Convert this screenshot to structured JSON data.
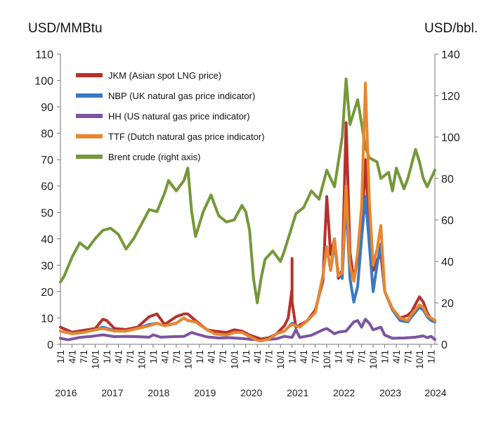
{
  "chart_data": {
    "type": "line",
    "left_axis_label": "USD/MMBtu",
    "right_axis_label": "USD/bbl.",
    "ylim_left": [
      0,
      110
    ],
    "ylim_right": [
      0,
      140
    ],
    "yticks_left": [
      "0",
      "10",
      "20",
      "30",
      "40",
      "50",
      "60",
      "70",
      "80",
      "90",
      "100",
      "110"
    ],
    "yticks_right": [
      "0",
      "20",
      "40",
      "60",
      "80",
      "100",
      "120",
      "140"
    ],
    "x_range": [
      "2016-01",
      "2024-02"
    ],
    "month_ticks": [
      "1/1",
      "4/1",
      "7/1",
      "10/1"
    ],
    "year_labels": [
      "2016",
      "2017",
      "2018",
      "2019",
      "2020",
      "2021",
      "2022",
      "2023",
      "2024"
    ],
    "grid": false,
    "legend_position": "top-left",
    "series": [
      {
        "name": "JKM (Asian spot LNG price)",
        "axis": "left",
        "color": "#B7312C",
        "points": [
          [
            "2016-01",
            6.5
          ],
          [
            "2016-04",
            4.6
          ],
          [
            "2016-07",
            5.3
          ],
          [
            "2016-10",
            6.0
          ],
          [
            "2016-12",
            9.5
          ],
          [
            "2017-01",
            9.0
          ],
          [
            "2017-03",
            6.0
          ],
          [
            "2017-06",
            5.6
          ],
          [
            "2017-09",
            6.5
          ],
          [
            "2017-12",
            10.5
          ],
          [
            "2018-02",
            11.5
          ],
          [
            "2018-04",
            7.5
          ],
          [
            "2018-07",
            10.5
          ],
          [
            "2018-09",
            11.5
          ],
          [
            "2018-10",
            11.5
          ],
          [
            "2018-12",
            9.0
          ],
          [
            "2019-03",
            5.5
          ],
          [
            "2019-05",
            5.0
          ],
          [
            "2019-08",
            4.5
          ],
          [
            "2019-10",
            5.5
          ],
          [
            "2019-12",
            5.0
          ],
          [
            "2020-02",
            3.5
          ],
          [
            "2020-04",
            2.5
          ],
          [
            "2020-05",
            2.0
          ],
          [
            "2020-07",
            2.5
          ],
          [
            "2020-09",
            4.0
          ],
          [
            "2020-11",
            7.0
          ],
          [
            "2020-12",
            10.0
          ],
          [
            "2021-01",
            21.0
          ],
          [
            "2021-01",
            32.5
          ],
          [
            "2021-01",
            16.0
          ],
          [
            "2021-02",
            6.5
          ],
          [
            "2021-05",
            9.0
          ],
          [
            "2021-07",
            13.0
          ],
          [
            "2021-09",
            24.0
          ],
          [
            "2021-10",
            56.0
          ],
          [
            "2021-11",
            34.0
          ],
          [
            "2021-12",
            40.0
          ],
          [
            "2022-01",
            25.0
          ],
          [
            "2022-02",
            28.0
          ],
          [
            "2022-03",
            84.0
          ],
          [
            "2022-04",
            35.0
          ],
          [
            "2022-05",
            24.0
          ],
          [
            "2022-06",
            33.0
          ],
          [
            "2022-07",
            42.0
          ],
          [
            "2022-08",
            70.0
          ],
          [
            "2022-09",
            42.0
          ],
          [
            "2022-10",
            28.0
          ],
          [
            "2022-11",
            32.0
          ],
          [
            "2022-12",
            34.0
          ],
          [
            "2023-01",
            20.0
          ],
          [
            "2023-03",
            13.5
          ],
          [
            "2023-05",
            10.0
          ],
          [
            "2023-07",
            11.0
          ],
          [
            "2023-08",
            12.5
          ],
          [
            "2023-10",
            18.0
          ],
          [
            "2023-11",
            16.0
          ],
          [
            "2023-12",
            12.0
          ],
          [
            "2024-01",
            9.5
          ],
          [
            "2024-02",
            9.0
          ]
        ]
      },
      {
        "name": "NBP (UK natural gas price indicator)",
        "axis": "left",
        "color": "#3A78C3",
        "points": [
          [
            "2016-01",
            5.0
          ],
          [
            "2016-04",
            4.2
          ],
          [
            "2016-07",
            4.6
          ],
          [
            "2016-10",
            5.5
          ],
          [
            "2016-12",
            6.5
          ],
          [
            "2017-03",
            5.2
          ],
          [
            "2017-06",
            5.0
          ],
          [
            "2017-09",
            6.0
          ],
          [
            "2017-12",
            7.5
          ],
          [
            "2018-02",
            8.0
          ],
          [
            "2018-04",
            7.0
          ],
          [
            "2018-07",
            8.0
          ],
          [
            "2018-09",
            10.0
          ],
          [
            "2018-10",
            9.0
          ],
          [
            "2018-12",
            8.5
          ],
          [
            "2019-03",
            5.5
          ],
          [
            "2019-05",
            4.0
          ],
          [
            "2019-08",
            3.5
          ],
          [
            "2019-10",
            4.5
          ],
          [
            "2019-12",
            4.5
          ],
          [
            "2020-02",
            3.0
          ],
          [
            "2020-04",
            1.5
          ],
          [
            "2020-05",
            1.3
          ],
          [
            "2020-07",
            2.0
          ],
          [
            "2020-09",
            4.0
          ],
          [
            "2020-11",
            5.0
          ],
          [
            "2020-12",
            6.5
          ],
          [
            "2021-01",
            8.0
          ],
          [
            "2021-03",
            6.5
          ],
          [
            "2021-05",
            9.0
          ],
          [
            "2021-07",
            12.0
          ],
          [
            "2021-09",
            26.0
          ],
          [
            "2021-10",
            37.0
          ],
          [
            "2021-11",
            28.0
          ],
          [
            "2021-12",
            38.0
          ],
          [
            "2022-01",
            27.0
          ],
          [
            "2022-02",
            25.0
          ],
          [
            "2022-03",
            55.0
          ],
          [
            "2022-04",
            25.0
          ],
          [
            "2022-05",
            16.0
          ],
          [
            "2022-06",
            22.0
          ],
          [
            "2022-07",
            40.0
          ],
          [
            "2022-08",
            56.0
          ],
          [
            "2022-09",
            38.0
          ],
          [
            "2022-10",
            20.0
          ],
          [
            "2022-11",
            30.0
          ],
          [
            "2022-12",
            38.0
          ],
          [
            "2023-01",
            20.0
          ],
          [
            "2023-03",
            13.0
          ],
          [
            "2023-05",
            9.0
          ],
          [
            "2023-07",
            8.5
          ],
          [
            "2023-08",
            10.5
          ],
          [
            "2023-10",
            14.0
          ],
          [
            "2023-11",
            13.0
          ],
          [
            "2023-12",
            10.5
          ],
          [
            "2024-01",
            9.0
          ],
          [
            "2024-02",
            8.5
          ]
        ]
      },
      {
        "name": "HH (US natural gas price indicator)",
        "axis": "left",
        "color": "#7B55A0",
        "points": [
          [
            "2016-01",
            2.3
          ],
          [
            "2016-03",
            1.7
          ],
          [
            "2016-06",
            2.6
          ],
          [
            "2016-09",
            3.0
          ],
          [
            "2016-12",
            3.6
          ],
          [
            "2017-03",
            2.9
          ],
          [
            "2017-06",
            3.0
          ],
          [
            "2017-09",
            2.9
          ],
          [
            "2017-12",
            2.7
          ],
          [
            "2018-01",
            3.6
          ],
          [
            "2018-03",
            2.7
          ],
          [
            "2018-06",
            2.9
          ],
          [
            "2018-09",
            3.0
          ],
          [
            "2018-11",
            4.5
          ],
          [
            "2018-12",
            4.0
          ],
          [
            "2019-03",
            2.8
          ],
          [
            "2019-06",
            2.4
          ],
          [
            "2019-09",
            2.5
          ],
          [
            "2019-12",
            2.2
          ],
          [
            "2020-03",
            1.8
          ],
          [
            "2020-06",
            1.7
          ],
          [
            "2020-09",
            2.1
          ],
          [
            "2020-11",
            3.0
          ],
          [
            "2021-01",
            2.6
          ],
          [
            "2021-02",
            5.5
          ],
          [
            "2021-03",
            2.6
          ],
          [
            "2021-06",
            3.4
          ],
          [
            "2021-09",
            5.5
          ],
          [
            "2021-10",
            6.0
          ],
          [
            "2021-12",
            4.0
          ],
          [
            "2022-01",
            4.6
          ],
          [
            "2022-03",
            5.0
          ],
          [
            "2022-05",
            8.5
          ],
          [
            "2022-06",
            9.0
          ],
          [
            "2022-07",
            6.5
          ],
          [
            "2022-08",
            9.5
          ],
          [
            "2022-09",
            8.0
          ],
          [
            "2022-10",
            5.5
          ],
          [
            "2022-11",
            6.0
          ],
          [
            "2022-12",
            6.5
          ],
          [
            "2023-01",
            3.5
          ],
          [
            "2023-03",
            2.3
          ],
          [
            "2023-06",
            2.4
          ],
          [
            "2023-09",
            2.7
          ],
          [
            "2023-11",
            3.2
          ],
          [
            "2023-12",
            2.5
          ],
          [
            "2024-01",
            3.0
          ],
          [
            "2024-02",
            1.8
          ]
        ]
      },
      {
        "name": "TTF (Dutch natural gas price indicator)",
        "axis": "left",
        "color": "#E8872E",
        "points": [
          [
            "2016-01",
            5.0
          ],
          [
            "2016-04",
            4.0
          ],
          [
            "2016-07",
            4.5
          ],
          [
            "2016-10",
            5.5
          ],
          [
            "2016-12",
            6.0
          ],
          [
            "2017-03",
            5.0
          ],
          [
            "2017-06",
            5.0
          ],
          [
            "2017-09",
            6.0
          ],
          [
            "2017-12",
            7.0
          ],
          [
            "2018-02",
            8.0
          ],
          [
            "2018-04",
            7.0
          ],
          [
            "2018-07",
            8.0
          ],
          [
            "2018-09",
            10.0
          ],
          [
            "2018-10",
            9.0
          ],
          [
            "2018-12",
            8.5
          ],
          [
            "2019-03",
            5.5
          ],
          [
            "2019-05",
            4.0
          ],
          [
            "2019-08",
            3.5
          ],
          [
            "2019-10",
            4.5
          ],
          [
            "2019-12",
            4.5
          ],
          [
            "2020-02",
            3.0
          ],
          [
            "2020-04",
            1.5
          ],
          [
            "2020-05",
            1.3
          ],
          [
            "2020-07",
            2.0
          ],
          [
            "2020-09",
            4.0
          ],
          [
            "2020-11",
            5.0
          ],
          [
            "2020-12",
            6.5
          ],
          [
            "2021-01",
            7.5
          ],
          [
            "2021-03",
            6.5
          ],
          [
            "2021-05",
            9.0
          ],
          [
            "2021-07",
            12.0
          ],
          [
            "2021-09",
            26.0
          ],
          [
            "2021-10",
            37.0
          ],
          [
            "2021-11",
            28.0
          ],
          [
            "2021-12",
            40.0
          ],
          [
            "2022-01",
            26.0
          ],
          [
            "2022-02",
            27.0
          ],
          [
            "2022-03",
            60.0
          ],
          [
            "2022-04",
            30.0
          ],
          [
            "2022-05",
            24.0
          ],
          [
            "2022-06",
            35.0
          ],
          [
            "2022-07",
            52.0
          ],
          [
            "2022-08",
            99.0
          ],
          [
            "2022-09",
            55.0
          ],
          [
            "2022-10",
            30.0
          ],
          [
            "2022-11",
            36.0
          ],
          [
            "2022-12",
            45.0
          ],
          [
            "2023-01",
            20.0
          ],
          [
            "2023-03",
            13.5
          ],
          [
            "2023-05",
            10.0
          ],
          [
            "2023-07",
            9.0
          ],
          [
            "2023-08",
            11.5
          ],
          [
            "2023-10",
            15.0
          ],
          [
            "2023-11",
            14.0
          ],
          [
            "2023-12",
            11.0
          ],
          [
            "2024-01",
            10.0
          ],
          [
            "2024-02",
            9.0
          ]
        ]
      },
      {
        "name": "Brent crude (right axis)",
        "axis": "right",
        "color": "#75983A",
        "points": [
          [
            "2016-01",
            30
          ],
          [
            "2016-02",
            33
          ],
          [
            "2016-04",
            42
          ],
          [
            "2016-06",
            49
          ],
          [
            "2016-08",
            46
          ],
          [
            "2016-10",
            51
          ],
          [
            "2016-12",
            55
          ],
          [
            "2017-02",
            56
          ],
          [
            "2017-04",
            53
          ],
          [
            "2017-06",
            46
          ],
          [
            "2017-08",
            51
          ],
          [
            "2017-10",
            58
          ],
          [
            "2017-12",
            65
          ],
          [
            "2018-02",
            64
          ],
          [
            "2018-04",
            73
          ],
          [
            "2018-05",
            79
          ],
          [
            "2018-07",
            74
          ],
          [
            "2018-09",
            79
          ],
          [
            "2018-10",
            85
          ],
          [
            "2018-11",
            64
          ],
          [
            "2018-12",
            52
          ],
          [
            "2019-02",
            64
          ],
          [
            "2019-04",
            72
          ],
          [
            "2019-06",
            62
          ],
          [
            "2019-08",
            59
          ],
          [
            "2019-10",
            60
          ],
          [
            "2019-12",
            67
          ],
          [
            "2020-01",
            64
          ],
          [
            "2020-02",
            55
          ],
          [
            "2020-03",
            32
          ],
          [
            "2020-04",
            20
          ],
          [
            "2020-05",
            32
          ],
          [
            "2020-06",
            41
          ],
          [
            "2020-08",
            45
          ],
          [
            "2020-10",
            40
          ],
          [
            "2020-11",
            45
          ],
          [
            "2020-12",
            51
          ],
          [
            "2021-02",
            63
          ],
          [
            "2021-04",
            66
          ],
          [
            "2021-06",
            74
          ],
          [
            "2021-08",
            70
          ],
          [
            "2021-10",
            84
          ],
          [
            "2021-12",
            76
          ],
          [
            "2022-02",
            100
          ],
          [
            "2022-03",
            128
          ],
          [
            "2022-04",
            106
          ],
          [
            "2022-06",
            118
          ],
          [
            "2022-08",
            95
          ],
          [
            "2022-09",
            90
          ],
          [
            "2022-11",
            88
          ],
          [
            "2022-12",
            80
          ],
          [
            "2023-02",
            83
          ],
          [
            "2023-03",
            74
          ],
          [
            "2023-04",
            85
          ],
          [
            "2023-06",
            75
          ],
          [
            "2023-07",
            80
          ],
          [
            "2023-09",
            94
          ],
          [
            "2023-10",
            88
          ],
          [
            "2023-11",
            80
          ],
          [
            "2023-12",
            76
          ],
          [
            "2024-01",
            80
          ],
          [
            "2024-02",
            84
          ]
        ]
      }
    ]
  }
}
